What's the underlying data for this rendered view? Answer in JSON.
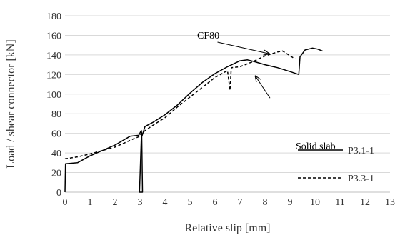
{
  "chart_data": {
    "type": "line",
    "title": "",
    "xlabel": "Relative slip [mm]",
    "ylabel": "Load / shear connector [kN]",
    "xlim": [
      0,
      13
    ],
    "ylim": [
      0,
      180
    ],
    "x_ticks": [
      0,
      1,
      2,
      3,
      4,
      5,
      6,
      7,
      8,
      9,
      10,
      11,
      12,
      13
    ],
    "y_ticks": [
      0,
      20,
      40,
      60,
      80,
      100,
      120,
      140,
      160,
      180
    ],
    "grid": "horizontal",
    "legend_position": "right",
    "series": [
      {
        "name": "P3.1-1",
        "style": "solid",
        "color": "#000000",
        "points": [
          [
            0,
            0
          ],
          [
            0.02,
            29
          ],
          [
            0.5,
            30
          ],
          [
            1,
            37
          ],
          [
            2,
            48
          ],
          [
            2.6,
            57
          ],
          [
            2.95,
            58
          ],
          [
            3.05,
            63
          ],
          [
            3.07,
            60
          ],
          [
            3.1,
            0
          ],
          [
            2.98,
            0
          ],
          [
            3.05,
            55
          ],
          [
            3.2,
            67
          ],
          [
            3.5,
            71
          ],
          [
            4,
            79
          ],
          [
            4.5,
            89
          ],
          [
            5,
            101
          ],
          [
            5.5,
            112
          ],
          [
            6,
            121
          ],
          [
            6.5,
            128
          ],
          [
            7,
            134
          ],
          [
            7.3,
            135
          ],
          [
            7.6,
            133
          ],
          [
            8,
            130
          ],
          [
            8.5,
            127
          ],
          [
            9,
            123
          ],
          [
            9.35,
            120
          ],
          [
            9.4,
            138
          ],
          [
            9.6,
            145
          ],
          [
            9.9,
            147
          ],
          [
            10.1,
            146
          ],
          [
            10.3,
            144
          ]
        ]
      },
      {
        "name": "P3.3-1",
        "style": "dashed",
        "color": "#000000",
        "points": [
          [
            0,
            34
          ],
          [
            0.5,
            36
          ],
          [
            1,
            39
          ],
          [
            2,
            46
          ],
          [
            2.8,
            55
          ],
          [
            3,
            57
          ],
          [
            3.05,
            60
          ],
          [
            3.5,
            68
          ],
          [
            4,
            76
          ],
          [
            4.5,
            87
          ],
          [
            5,
            97
          ],
          [
            5.5,
            107
          ],
          [
            6,
            117
          ],
          [
            6.5,
            124
          ],
          [
            6.6,
            104
          ],
          [
            6.65,
            127
          ],
          [
            7,
            128
          ],
          [
            7.5,
            133
          ],
          [
            8,
            139
          ],
          [
            8.5,
            143
          ],
          [
            8.7,
            144
          ],
          [
            9.2,
            136
          ]
        ]
      }
    ],
    "annotations": [
      {
        "text": "CF80",
        "arrow_from": [
          6.1,
          153
        ],
        "arrow_to": [
          8.2,
          141
        ]
      },
      {
        "text": "Solid slab",
        "arrow_from": [
          8.2,
          96
        ],
        "arrow_to": [
          7.6,
          119
        ]
      }
    ]
  }
}
